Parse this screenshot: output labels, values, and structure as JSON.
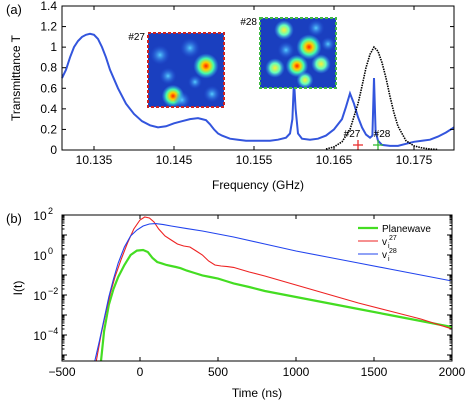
{
  "chart_data": [
    {
      "panel_label": "(a)",
      "type": "line",
      "xlabel": "Frequency (GHz)",
      "ylabel": "Transmittance T",
      "xlim": [
        10.131,
        10.18
      ],
      "ylim": [
        0,
        1.4
      ],
      "x_ticks": [
        "10.135",
        "10.145",
        "10.155",
        "10.165",
        "10.175"
      ],
      "x_tick_values": [
        10.135,
        10.145,
        10.155,
        10.165,
        10.175
      ],
      "y_ticks": [
        "0",
        "0.2",
        "0.4",
        "0.6",
        "0.8",
        "1",
        "1.2",
        "1.4"
      ],
      "y_tick_values": [
        0,
        0.2,
        0.4,
        0.6,
        0.8,
        1.0,
        1.2,
        1.4
      ],
      "series": [
        {
          "color": "#3355dd",
          "x": [
            10.131,
            10.1315,
            10.132,
            10.1325,
            10.133,
            10.1335,
            10.134,
            10.1345,
            10.135,
            10.1355,
            10.136,
            10.1365,
            10.137,
            10.138,
            10.139,
            10.14,
            10.141,
            10.142,
            10.143,
            10.144,
            10.145,
            10.146,
            10.147,
            10.148,
            10.1485,
            10.149,
            10.1495,
            10.15,
            10.1505,
            10.151,
            10.152,
            10.153,
            10.154,
            10.155,
            10.156,
            10.157,
            10.158,
            10.159,
            10.1595,
            10.1598,
            10.16,
            10.1602,
            10.1605,
            10.161,
            10.162,
            10.163,
            10.164,
            10.165,
            10.166,
            10.1665,
            10.167,
            10.1675,
            10.168,
            10.1685,
            10.169,
            10.1695,
            10.1698,
            10.17,
            10.1702,
            10.1705,
            10.171,
            10.172,
            10.173,
            10.174,
            10.175,
            10.176,
            10.177,
            10.178,
            10.179,
            10.18
          ],
          "y": [
            0.7,
            0.78,
            0.9,
            1.0,
            1.06,
            1.1,
            1.12,
            1.13,
            1.12,
            1.08,
            1.0,
            0.9,
            0.78,
            0.6,
            0.45,
            0.35,
            0.28,
            0.24,
            0.22,
            0.23,
            0.26,
            0.28,
            0.3,
            0.31,
            0.3,
            0.29,
            0.25,
            0.2,
            0.16,
            0.14,
            0.11,
            0.1,
            0.09,
            0.09,
            0.09,
            0.09,
            0.1,
            0.12,
            0.16,
            0.3,
            0.68,
            0.4,
            0.16,
            0.11,
            0.1,
            0.11,
            0.14,
            0.2,
            0.3,
            0.42,
            0.55,
            0.45,
            0.32,
            0.22,
            0.15,
            0.12,
            0.14,
            0.7,
            0.18,
            0.09,
            0.05,
            0.04,
            0.04,
            0.06,
            0.08,
            0.09,
            0.1,
            0.13,
            0.17,
            0.22
          ]
        },
        {
          "color": "#000000",
          "style": "dotted",
          "x": [
            10.164,
            10.165,
            10.166,
            10.167,
            10.168,
            10.1685,
            10.169,
            10.1695,
            10.17,
            10.1705,
            10.171,
            10.1715,
            10.172,
            10.1725,
            10.173,
            10.174,
            10.175,
            10.176,
            10.177,
            10.178
          ],
          "y": [
            0.01,
            0.03,
            0.08,
            0.2,
            0.45,
            0.62,
            0.8,
            0.93,
            1.0,
            0.96,
            0.85,
            0.7,
            0.52,
            0.36,
            0.23,
            0.09,
            0.04,
            0.02,
            0.01,
            0.005
          ]
        }
      ],
      "markers": [
        {
          "label": "#27",
          "x": 10.168,
          "color": "#e83030"
        },
        {
          "label": "#28",
          "x": 10.1705,
          "color": "#33bb33"
        }
      ],
      "insets": [
        {
          "label": "#27",
          "border_color": "#cc2222"
        },
        {
          "label": "#28",
          "border_color": "#44bb44"
        }
      ]
    },
    {
      "panel_label": "(b)",
      "type": "line",
      "xlabel": "Time (ns)",
      "ylabel": "I(t)",
      "xlim": [
        -500,
        2000
      ],
      "ylim_log10": [
        -5.3,
        2
      ],
      "y_log": true,
      "x_ticks": [
        "−500",
        "0",
        "500",
        "1000",
        "1500",
        "2000"
      ],
      "x_tick_values": [
        -500,
        0,
        500,
        1000,
        1500,
        2000
      ],
      "y_ticks": [
        {
          "base": "10",
          "exp": "2",
          "value": 2
        },
        {
          "base": "10",
          "exp": "0",
          "value": 0
        },
        {
          "base": "10",
          "exp": "−2",
          "value": -2
        },
        {
          "base": "10",
          "exp": "−4",
          "value": -4
        }
      ],
      "legend_position": "top-right",
      "series": [
        {
          "legend_label": "Planewave",
          "color": "#44dd22",
          "x": [
            -250,
            -230,
            -200,
            -170,
            -140,
            -100,
            -60,
            -20,
            20,
            50,
            80,
            110,
            140,
            170,
            200,
            230,
            260,
            300,
            350,
            400,
            450,
            500,
            550,
            600,
            700,
            800,
            1000,
            1200,
            1400,
            1600,
            1800,
            2000
          ],
          "log10y": [
            -5.3,
            -3.8,
            -2.5,
            -1.7,
            -1.1,
            -0.5,
            0.0,
            0.22,
            0.25,
            0.15,
            -0.15,
            -0.35,
            -0.42,
            -0.5,
            -0.55,
            -0.6,
            -0.66,
            -0.78,
            -0.9,
            -1.02,
            -1.1,
            -1.18,
            -1.3,
            -1.42,
            -1.6,
            -1.8,
            -2.1,
            -2.4,
            -2.7,
            -3.0,
            -3.3,
            -3.6
          ]
        },
        {
          "legend_label": "v",
          "legend_sub": "i",
          "legend_sup": "27",
          "color": "#ee2222",
          "x": [
            -280,
            -250,
            -220,
            -190,
            -160,
            -120,
            -80,
            -40,
            0,
            30,
            60,
            90,
            120,
            160,
            200,
            240,
            280,
            320,
            360,
            400,
            440,
            480,
            520,
            560,
            600,
            700,
            800,
            1000,
            1200,
            1400,
            1600,
            1800,
            2000
          ],
          "log10y": [
            -5.3,
            -4.0,
            -2.9,
            -1.9,
            -1.1,
            -0.2,
            0.6,
            1.3,
            1.75,
            1.9,
            1.85,
            1.65,
            1.3,
            0.95,
            0.75,
            0.55,
            0.45,
            0.4,
            0.2,
            0.0,
            -0.3,
            -0.5,
            -0.55,
            -0.58,
            -0.62,
            -0.85,
            -1.05,
            -1.5,
            -1.95,
            -2.4,
            -2.8,
            -3.2,
            -3.7
          ]
        },
        {
          "legend_label": "v",
          "legend_sub": "i",
          "legend_sup": "28",
          "color": "#2244ee",
          "x": [
            -290,
            -260,
            -230,
            -200,
            -170,
            -140,
            -100,
            -60,
            -20,
            20,
            60,
            100,
            150,
            200,
            300,
            400,
            500,
            600,
            800,
            1000,
            1200,
            1400,
            1600,
            1800,
            2000
          ],
          "log10y": [
            -5.3,
            -4.3,
            -3.2,
            -2.1,
            -1.2,
            -0.4,
            0.4,
            0.95,
            1.25,
            1.45,
            1.55,
            1.57,
            1.52,
            1.45,
            1.32,
            1.2,
            1.05,
            0.9,
            0.55,
            0.2,
            -0.1,
            -0.4,
            -0.7,
            -1.0,
            -1.3
          ]
        }
      ]
    }
  ]
}
